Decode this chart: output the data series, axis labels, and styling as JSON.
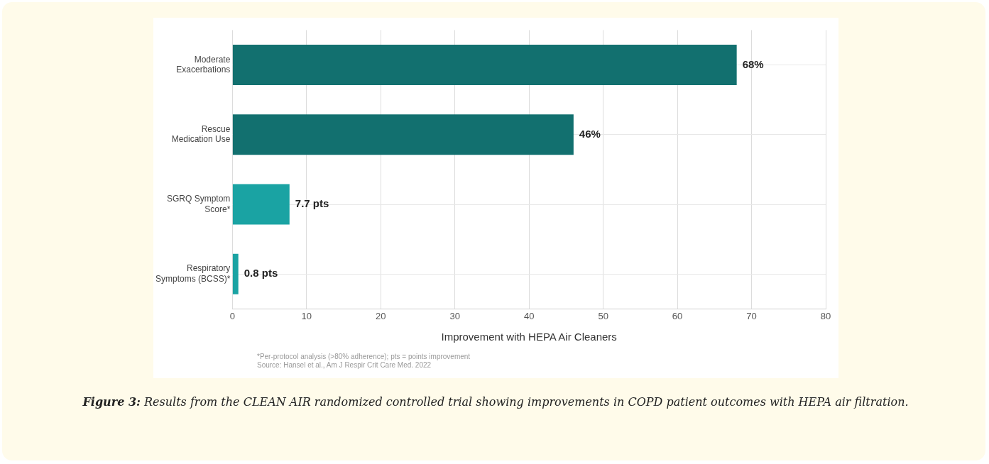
{
  "chart_data": {
    "type": "bar",
    "orientation": "horizontal",
    "categories": [
      "Moderate Exacerbations",
      "Rescue Medication Use",
      "SGRQ Symptom Score*",
      "Respiratory Symptoms (BCSS)*"
    ],
    "values": [
      68,
      46,
      7.7,
      0.8
    ],
    "colors": [
      "#12706f",
      "#12706f",
      "#1aa3a3",
      "#1aa3a3"
    ],
    "value_labels": [
      "68%",
      "46%",
      "7.7 pts",
      "0.8 pts"
    ],
    "xlabel": "Improvement with HEPA Air Cleaners",
    "xlim": [
      0,
      80
    ],
    "xticks": [
      0,
      10,
      20,
      30,
      40,
      50,
      60,
      70,
      80
    ],
    "grid": true,
    "annotations": [
      "*Per-protocol analysis (>80% adherence); pts = points improvement",
      "Source: Hansel et al., Am J Respir Crit Care Med. 2022",
      "Figure 3: Results from the CLEAN AIR randomized controlled trial showing improvements in COPD patient outcomes with HEPA air filtration."
    ]
  }
}
